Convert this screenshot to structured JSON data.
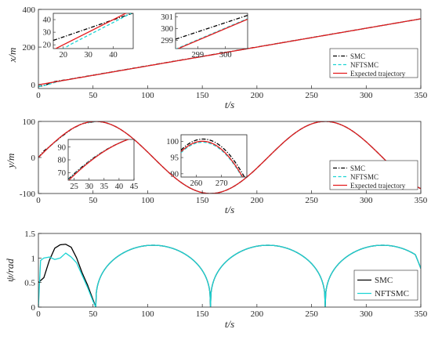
{
  "chart_data": [
    {
      "type": "line",
      "ylabel": "x/m",
      "xlabel": "t/s",
      "xlim": [
        0,
        350
      ],
      "ylim": [
        -20,
        400
      ],
      "xticks": [
        "0",
        "50",
        "100",
        "150",
        "200",
        "250",
        "300",
        "350"
      ],
      "yticks": [
        "0",
        "200",
        "400"
      ],
      "grid": false,
      "legend_position": "bottom-right",
      "series": [
        {
          "name": "SMC",
          "color": "#000000",
          "dash": "dash-dot",
          "x": [
            0,
            5,
            10,
            15,
            20,
            25,
            30,
            350
          ],
          "values": [
            -10,
            -4,
            6,
            17,
            22,
            26,
            31,
            350
          ]
        },
        {
          "name": "NFTSMC",
          "color": "#1bd3d3",
          "dash": "dashed",
          "x": [
            0,
            5,
            10,
            15,
            20,
            25,
            30,
            350
          ],
          "values": [
            -10,
            -5,
            3,
            12,
            19,
            25,
            30,
            350
          ]
        },
        {
          "name": "Expected trajectory",
          "color": "#e41a1c",
          "dash": "solid",
          "x": [
            0,
            350
          ],
          "values": [
            0,
            350
          ]
        }
      ],
      "insets": [
        {
          "xticks": [
            "20",
            "30",
            "40"
          ],
          "yticks": [
            "20",
            "30",
            "40"
          ],
          "xlim": [
            16,
            48
          ],
          "ylim": [
            17,
            45
          ]
        },
        {
          "xticks": [
            "299",
            "300"
          ],
          "yticks": [
            "299",
            "300",
            "301"
          ],
          "xlim": [
            298.2,
            300.8
          ],
          "ylim": [
            298.3,
            301.3
          ]
        }
      ]
    },
    {
      "type": "line",
      "ylabel": "y/m",
      "xlabel": "t/s",
      "xlim": [
        0,
        350
      ],
      "ylim": [
        -100,
        100
      ],
      "xticks": [
        "0",
        "50",
        "100",
        "150",
        "200",
        "250",
        "300",
        "350"
      ],
      "yticks": [
        "-100",
        "0",
        "100"
      ],
      "grid": false,
      "legend_position": "bottom-right",
      "series": [
        {
          "name": "SMC",
          "color": "#000000",
          "dash": "dash-dot",
          "x": [
            0,
            5,
            10,
            20,
            30,
            40,
            52.5,
            350
          ],
          "values": [
            0,
            18,
            30,
            55,
            78,
            94,
            100,
            -85
          ]
        },
        {
          "name": "NFTSMC",
          "color": "#1bd3d3",
          "dash": "dashed",
          "x": [
            0,
            5,
            10,
            20,
            30,
            40,
            52.5,
            350
          ],
          "values": [
            0,
            15,
            29,
            56,
            79,
            94,
            100,
            -85
          ]
        },
        {
          "name": "Expected trajectory",
          "color": "#e41a1c",
          "dash": "solid",
          "x": [
            0,
            52.5,
            157.5,
            262.5,
            350
          ],
          "values": [
            0,
            100,
            -100,
            100,
            -85
          ]
        }
      ],
      "insets": [
        {
          "xticks": [
            "25",
            "30",
            "35",
            "40",
            "45"
          ],
          "yticks": [
            "70",
            "80",
            "90"
          ],
          "xlim": [
            23,
            45
          ],
          "ylim": [
            64,
            96
          ]
        },
        {
          "xticks": [
            "260",
            "270"
          ],
          "yticks": [
            "90",
            "95",
            "100"
          ],
          "xlim": [
            254,
            280
          ],
          "ylim": [
            89,
            102
          ]
        }
      ]
    },
    {
      "type": "line",
      "ylabel": "ψ/rad",
      "xlabel": "t/s",
      "xlim": [
        0,
        350
      ],
      "ylim": [
        0,
        1.5
      ],
      "xticks": [
        "0",
        "50",
        "100",
        "150",
        "200",
        "250",
        "300",
        "350"
      ],
      "yticks": [
        "0",
        "0.5",
        "1",
        "1.5"
      ],
      "grid": false,
      "legend_position": "bottom-right",
      "series": [
        {
          "name": "SMC",
          "color": "#000000",
          "dash": "solid",
          "x": [
            0,
            5,
            10,
            15,
            20,
            25,
            30,
            35,
            40,
            45,
            50,
            52.5
          ],
          "values": [
            0.5,
            0.6,
            0.95,
            1.2,
            1.27,
            1.28,
            1.22,
            1.0,
            0.7,
            0.45,
            0.15,
            0.0
          ]
        },
        {
          "name": "NFTSMC",
          "color": "#1bd3d3",
          "dash": "solid",
          "x": [
            0,
            2,
            5,
            10,
            15,
            20,
            25,
            30,
            35,
            40,
            45,
            50,
            52.5
          ],
          "values": [
            0.0,
            0.95,
            1.0,
            1.02,
            0.97,
            1.0,
            1.1,
            1.02,
            0.9,
            0.65,
            0.4,
            0.12,
            0.0
          ]
        }
      ]
    }
  ]
}
